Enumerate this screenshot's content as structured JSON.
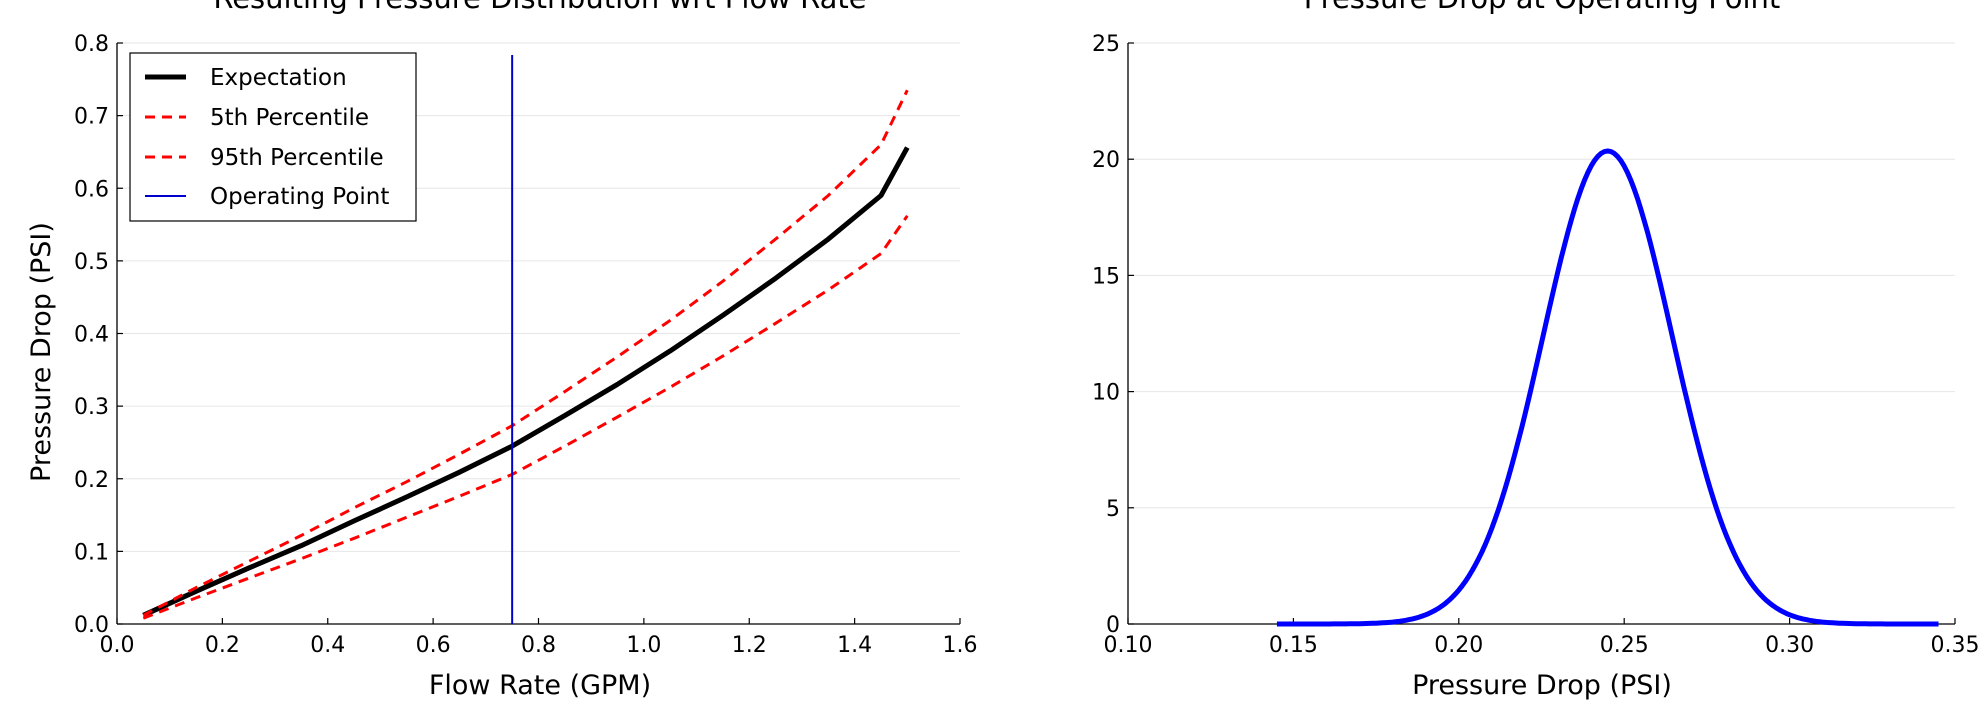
{
  "chart_data": [
    {
      "type": "line",
      "title": "Resulting Pressure Distribution wrt Flow Rate",
      "xlabel": "Flow Rate (GPM)",
      "ylabel": "Pressure Drop (PSI)",
      "xlim": [
        0.0,
        1.6
      ],
      "ylim": [
        0.0,
        0.8
      ],
      "x_ticks": [
        "0.0",
        "0.2",
        "0.4",
        "0.6",
        "0.8",
        "1.0",
        "1.2",
        "1.4",
        "1.6"
      ],
      "y_ticks": [
        "0.0",
        "0.1",
        "0.2",
        "0.3",
        "0.4",
        "0.5",
        "0.6",
        "0.7",
        "0.8"
      ],
      "grid": "horizontal",
      "legend_position": "top-left",
      "x": [
        0.05,
        0.15,
        0.25,
        0.35,
        0.45,
        0.55,
        0.65,
        0.75,
        0.85,
        0.95,
        1.05,
        1.15,
        1.25,
        1.35,
        1.45,
        1.5
      ],
      "series": [
        {
          "name": "Expectation",
          "color": "#000000",
          "style": "solid",
          "values": [
            0.012,
            0.045,
            0.077,
            0.108,
            0.142,
            0.175,
            0.209,
            0.245,
            0.287,
            0.33,
            0.376,
            0.425,
            0.476,
            0.53,
            0.59,
            0.656
          ]
        },
        {
          "name": "5th Percentile",
          "color": "#ff0000",
          "style": "dashed",
          "values": [
            0.012,
            0.05,
            0.086,
            0.122,
            0.16,
            0.196,
            0.234,
            0.273,
            0.32,
            0.368,
            0.418,
            0.472,
            0.53,
            0.59,
            0.66,
            0.735
          ]
        },
        {
          "name": "95th Percentile",
          "color": "#ff0000",
          "style": "dashed",
          "values": [
            0.008,
            0.036,
            0.063,
            0.09,
            0.118,
            0.147,
            0.176,
            0.206,
            0.245,
            0.285,
            0.326,
            0.369,
            0.414,
            0.46,
            0.51,
            0.562
          ]
        }
      ],
      "vline": {
        "name": "Operating Point",
        "x": 0.75,
        "color": "#0000cc"
      }
    },
    {
      "type": "line",
      "title": "Pressure Drop at Operating Point",
      "xlabel": "Pressure Drop (PSI)",
      "ylabel": "",
      "xlim": [
        0.1,
        0.35
      ],
      "ylim": [
        0,
        25
      ],
      "x_ticks": [
        "0.10",
        "0.15",
        "0.20",
        "0.25",
        "0.30",
        "0.35"
      ],
      "y_ticks": [
        "0",
        "5",
        "10",
        "15",
        "20",
        "25"
      ],
      "grid": "horizontal",
      "series": [
        {
          "name": "",
          "color": "#0000ff",
          "style": "solid",
          "distribution": {
            "kind": "normal",
            "mean": 0.245,
            "std": 0.0196,
            "x_range": [
              0.145,
              0.345
            ]
          }
        }
      ]
    }
  ]
}
